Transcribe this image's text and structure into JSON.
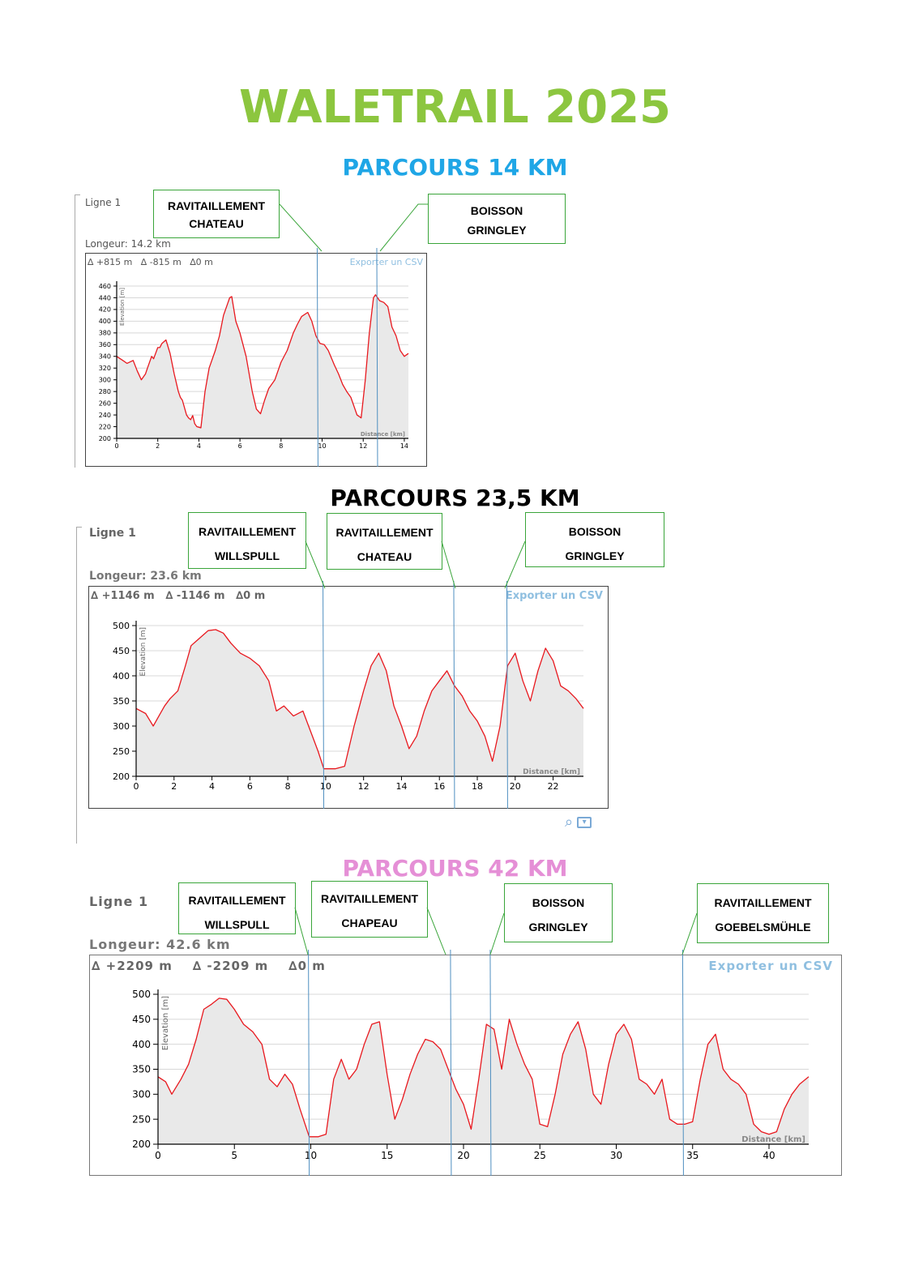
{
  "title": "WALETRAIL 2025",
  "colors": {
    "title": "#8cc63f",
    "course14": "#1fa6e6",
    "course23": "#000000",
    "course42": "#e58fd6",
    "profile": "#e8181e",
    "area": "#e9e9e9",
    "note_border": "#3aa53a",
    "marker": "#4f8fc0",
    "export": "#8fbfe0"
  },
  "courses": [
    {
      "heading": "PARCOURS 14 KM",
      "line_label": "Ligne 1",
      "length_label": "Longeur: 14.2 km",
      "stats": [
        "∆ +815 m",
        "∆ -815 m",
        "∆0 m"
      ],
      "export_label": "Exporter un CSV",
      "ylabel": "Elevation [m]",
      "xlabel": "Distance [km]",
      "notes": [
        {
          "line1": "RAVITAILLEMENT",
          "line2": "CHATEAU"
        },
        {
          "line1": "BOISSON",
          "line2": "GRINGLEY"
        }
      ],
      "chart_data": {
        "type": "area",
        "ylim": [
          200,
          460
        ],
        "xlim": [
          0,
          14.2
        ],
        "yticks": [
          200,
          220,
          240,
          260,
          280,
          300,
          320,
          340,
          360,
          380,
          400,
          420,
          440,
          460
        ],
        "xticks": [
          0,
          2,
          4,
          6,
          8,
          10,
          12,
          14
        ],
        "markers_km": [
          9.8,
          12.7
        ],
        "series": [
          {
            "x": [
              0,
              0.3,
              0.5,
              0.8,
              1.0,
              1.2,
              1.4,
              1.5,
              1.7,
              1.8,
              2.0,
              2.1,
              2.2,
              2.4,
              2.6,
              2.8,
              3.0,
              3.1,
              3.2,
              3.4,
              3.5,
              3.6,
              3.7,
              3.8,
              3.9,
              4.1,
              4.3,
              4.5,
              4.8,
              5.0,
              5.2,
              5.4,
              5.5,
              5.6,
              5.8,
              6.0,
              6.3,
              6.6,
              6.8,
              7.0,
              7.2,
              7.4,
              7.7,
              8.0,
              8.3,
              8.6,
              8.8,
              9.0,
              9.3,
              9.5,
              9.7,
              9.9,
              10.1,
              10.3,
              10.6,
              10.8,
              11.0,
              11.2,
              11.4,
              11.7,
              11.9,
              12.1,
              12.3,
              12.5,
              12.6,
              12.8,
              13.0,
              13.2,
              13.4,
              13.6,
              13.8,
              14.0,
              14.2
            ],
            "y": [
              340,
              333,
              328,
              333,
              315,
              300,
              310,
              320,
              340,
              336,
              355,
              355,
              362,
              368,
              345,
              310,
              280,
              270,
              265,
              240,
              235,
              232,
              239,
              225,
              220,
              218,
              280,
              320,
              350,
              375,
              410,
              430,
              440,
              442,
              400,
              380,
              340,
              280,
              250,
              242,
              265,
              285,
              300,
              330,
              350,
              380,
              395,
              408,
              415,
              400,
              375,
              362,
              360,
              350,
              325,
              310,
              292,
              280,
              270,
              240,
              235,
              300,
              380,
              440,
              445,
              435,
              432,
              425,
              390,
              375,
              350,
              340,
              345
            ]
          }
        ]
      }
    },
    {
      "heading": "PARCOURS 23,5 KM",
      "line_label": "Ligne 1",
      "length_label": "Longeur: 23.6 km",
      "stats": [
        "∆ +1146 m",
        "∆ -1146 m",
        "∆0 m"
      ],
      "export_label": "Exporter un CSV",
      "ylabel": "Elevation [m]",
      "xlabel": "Distance [km]",
      "notes": [
        {
          "line1": "RAVITAILLEMENT",
          "line2": "WILLSPULL"
        },
        {
          "line1": "RAVITAILLEMENT",
          "line2": "CHATEAU"
        },
        {
          "line1": "BOISSON",
          "line2": "GRINGLEY"
        }
      ],
      "chart_data": {
        "type": "area",
        "ylim": [
          200,
          500
        ],
        "xlim": [
          0,
          23.6
        ],
        "yticks": [
          200,
          250,
          300,
          350,
          400,
          450,
          500
        ],
        "xticks": [
          0,
          2,
          4,
          6,
          8,
          10,
          12,
          14,
          16,
          18,
          20,
          22
        ],
        "markers_km": [
          9.9,
          16.8,
          19.6
        ],
        "series": [
          {
            "x": [
              0,
              0.5,
              0.9,
              1.2,
              1.5,
              1.8,
              2.2,
              2.6,
              2.9,
              3.2,
              3.5,
              3.8,
              4.2,
              4.6,
              5.0,
              5.5,
              6.0,
              6.5,
              7.0,
              7.4,
              7.8,
              8.3,
              8.8,
              9.3,
              9.6,
              9.9,
              10.5,
              11.0,
              11.5,
              12.0,
              12.4,
              12.8,
              13.2,
              13.6,
              14.0,
              14.4,
              14.8,
              15.2,
              15.6,
              16.0,
              16.4,
              16.8,
              17.2,
              17.6,
              18.0,
              18.4,
              18.8,
              19.2,
              19.6,
              20.0,
              20.4,
              20.8,
              21.2,
              21.6,
              22.0,
              22.4,
              22.8,
              23.2,
              23.6
            ],
            "y": [
              335,
              325,
              300,
              320,
              340,
              355,
              370,
              420,
              460,
              470,
              480,
              490,
              492,
              485,
              465,
              445,
              435,
              420,
              390,
              330,
              340,
              320,
              330,
              280,
              250,
              215,
              215,
              220,
              300,
              370,
              420,
              445,
              410,
              340,
              300,
              255,
              280,
              330,
              370,
              390,
              410,
              380,
              360,
              330,
              310,
              280,
              230,
              300,
              420,
              445,
              390,
              350,
              410,
              455,
              430,
              380,
              370,
              355,
              335
            ]
          }
        ]
      }
    },
    {
      "heading": "PARCOURS 42 KM",
      "line_label": "Ligne 1",
      "length_label": "Longeur: 42.6 km",
      "stats": [
        "∆ +2209 m",
        "∆ -2209 m",
        "∆0 m"
      ],
      "export_label": "Exporter un CSV",
      "ylabel": "Elevation [m]",
      "xlabel": "Distance [km]",
      "notes": [
        {
          "line1": "RAVITAILLEMENT",
          "line2": "WILLSPULL"
        },
        {
          "line1": "RAVITAILLEMENT",
          "line2": "CHAPEAU"
        },
        {
          "line1": "BOISSON",
          "line2": "GRINGLEY"
        },
        {
          "line1": "RAVITAILLEMENT",
          "line2": "GOEBELSMÜHLE"
        }
      ],
      "chart_data": {
        "type": "area",
        "ylim": [
          200,
          500
        ],
        "xlim": [
          0,
          42.6
        ],
        "yticks": [
          200,
          250,
          300,
          350,
          400,
          450,
          500
        ],
        "xticks": [
          0,
          5,
          10,
          15,
          20,
          25,
          30,
          35,
          40
        ],
        "markers_km": [
          9.9,
          19.2,
          21.8,
          34.4
        ],
        "series": [
          {
            "x": [
              0,
              0.5,
              0.9,
              1.5,
              2.0,
              2.5,
              3.0,
              3.5,
              4.0,
              4.5,
              5.0,
              5.6,
              6.2,
              6.8,
              7.3,
              7.8,
              8.3,
              8.8,
              9.3,
              9.9,
              10.5,
              11.0,
              11.5,
              12.0,
              12.5,
              13.0,
              13.5,
              14.0,
              14.5,
              15.0,
              15.5,
              16.0,
              16.5,
              17.0,
              17.5,
              18.0,
              18.5,
              19.0,
              19.5,
              20.0,
              20.5,
              21.0,
              21.5,
              22.0,
              22.5,
              23.0,
              23.5,
              24.0,
              24.5,
              25.0,
              25.5,
              26.0,
              26.5,
              27.0,
              27.5,
              28.0,
              28.5,
              29.0,
              29.5,
              30.0,
              30.5,
              31.0,
              31.5,
              32.0,
              32.5,
              33.0,
              33.5,
              34.0,
              34.5,
              35.0,
              35.5,
              36.0,
              36.5,
              37.0,
              37.5,
              38.0,
              38.5,
              39.0,
              39.5,
              40.0,
              40.5,
              41.0,
              41.5,
              42.0,
              42.6
            ],
            "y": [
              335,
              325,
              300,
              330,
              360,
              410,
              470,
              480,
              492,
              490,
              470,
              440,
              425,
              400,
              330,
              315,
              340,
              320,
              270,
              215,
              215,
              220,
              330,
              370,
              330,
              350,
              400,
              440,
              445,
              340,
              250,
              290,
              340,
              380,
              410,
              405,
              390,
              350,
              310,
              280,
              230,
              330,
              440,
              430,
              350,
              450,
              400,
              360,
              330,
              240,
              235,
              300,
              380,
              420,
              445,
              390,
              300,
              280,
              360,
              420,
              440,
              410,
              330,
              320,
              300,
              330,
              250,
              240,
              240,
              245,
              330,
              400,
              420,
              350,
              330,
              320,
              300,
              240,
              225,
              220,
              225,
              270,
              300,
              320,
              335
            ]
          }
        ]
      }
    }
  ]
}
